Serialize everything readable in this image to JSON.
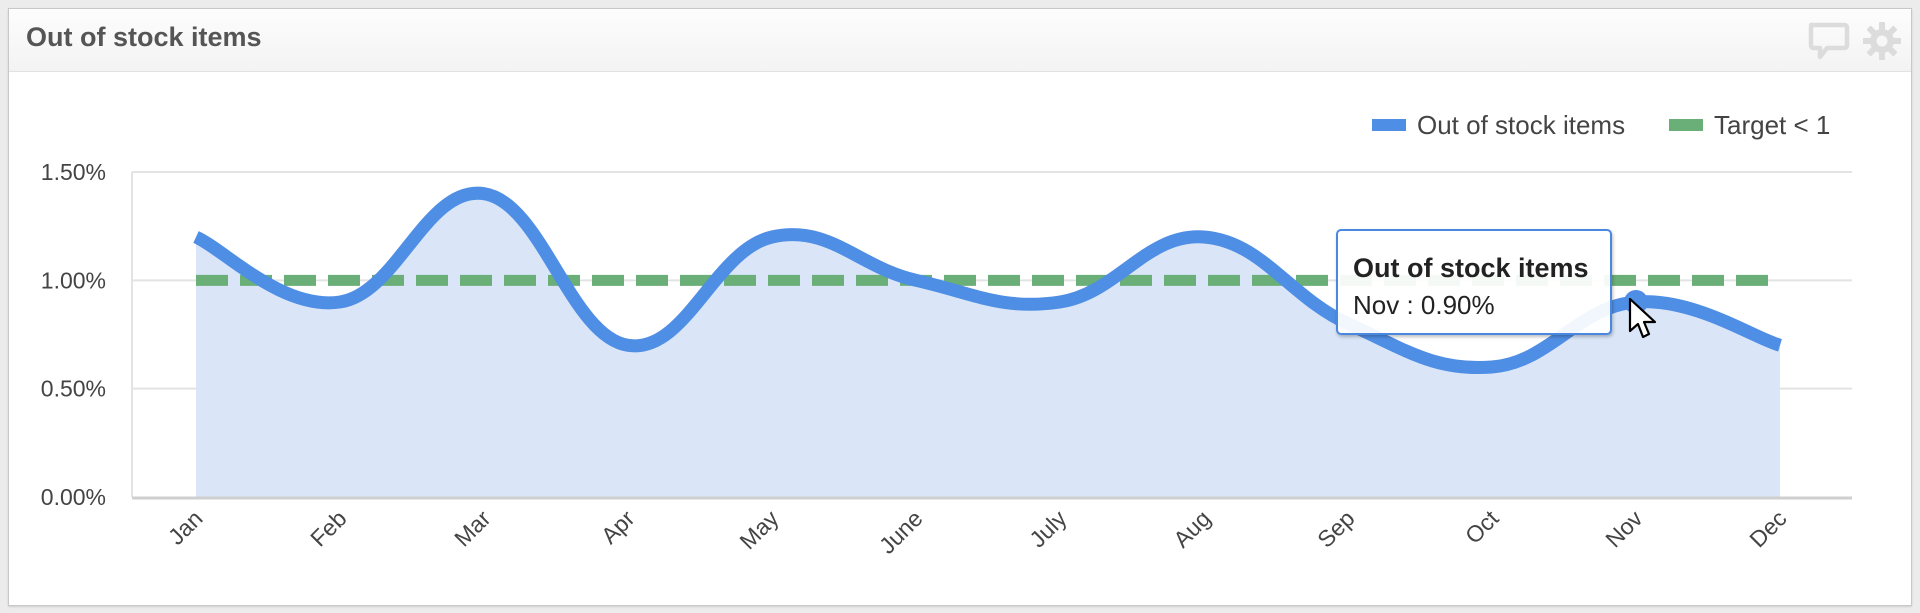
{
  "panel": {
    "title": "Out of stock items",
    "icons": [
      "comment-icon",
      "gear-icon"
    ]
  },
  "colors": {
    "series_line": "#4f8ee5",
    "series_fill": "#dae6f8",
    "target_line": "#6aaf77",
    "grid": "#e3e3e3",
    "axis": "#cfcfcf",
    "tooltip_border": "#4a88e0"
  },
  "legend": {
    "items": [
      {
        "label": "Out of stock items",
        "color": "#4f8ee5"
      },
      {
        "label": "Target < 1",
        "color": "#6aaf77"
      }
    ]
  },
  "tooltip": {
    "title": "Out of stock items",
    "value": "Nov : 0.90%"
  },
  "chart_data": {
    "type": "area",
    "title": "Out of stock items",
    "xlabel": "",
    "ylabel": "",
    "categories": [
      "Jan",
      "Feb",
      "Mar",
      "Apr",
      "May",
      "June",
      "July",
      "Aug",
      "Sep",
      "Oct",
      "Nov",
      "Dec"
    ],
    "series": [
      {
        "name": "Out of stock items",
        "type": "area-spline",
        "values": [
          1.2,
          0.9,
          1.4,
          0.7,
          1.2,
          1.0,
          0.9,
          1.2,
          0.8,
          0.6,
          0.9,
          0.7
        ]
      },
      {
        "name": "Target < 1",
        "type": "dashed-line",
        "values": [
          1.0,
          1.0,
          1.0,
          1.0,
          1.0,
          1.0,
          1.0,
          1.0,
          1.0,
          1.0,
          1.0,
          1.0
        ]
      }
    ],
    "yticks": [
      "0.00%",
      "0.50%",
      "1.00%",
      "1.50%"
    ],
    "ytick_values": [
      0,
      0.5,
      1.0,
      1.5
    ],
    "ylim": [
      0,
      1.5
    ],
    "y_format": "percent",
    "grid": true,
    "legend_position": "top-right",
    "x_label_rotation": -45,
    "highlighted_point": {
      "category": "Nov",
      "value": 0.9
    }
  }
}
